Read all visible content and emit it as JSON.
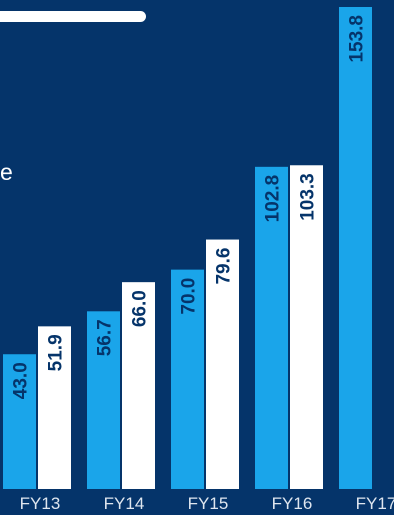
{
  "text_fragment": "e",
  "colors": {
    "background": "#05346a",
    "bar_primary": "#1aa5ea",
    "bar_secondary": "#ffffff",
    "label_text": "#05346a",
    "tick_text": "#dfe6ef"
  },
  "chart_data": {
    "type": "bar",
    "categories": [
      "FY13",
      "FY14",
      "FY15",
      "FY16",
      "FY17"
    ],
    "series": [
      {
        "values": [
          43.0,
          56.7,
          70.0,
          102.8,
          153.8
        ]
      },
      {
        "values": [
          51.9,
          66.0,
          79.6,
          103.3,
          null
        ]
      }
    ],
    "value_labels": [
      [
        "43.0",
        "56.7",
        "70.0",
        "102.8",
        "153.8"
      ],
      [
        "51.9",
        "66.0",
        "79.6",
        "103.3",
        ""
      ]
    ],
    "ylim": [
      0,
      153.8
    ],
    "grid": false,
    "legend": "none"
  }
}
